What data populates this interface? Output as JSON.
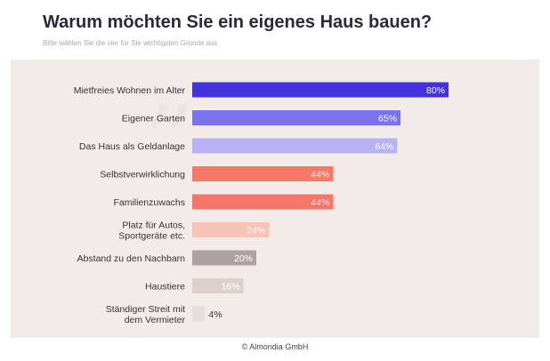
{
  "header": {
    "title": "Warum möchten Sie ein eigenes Haus bauen?",
    "subtitle": "Bitte wählen Sie die vier für Sie wichtigsten Gründe aus"
  },
  "decoration": {
    "quote_mark": "„"
  },
  "footer": {
    "copyright": "© Almondia GmbH"
  },
  "chart_data": {
    "type": "bar",
    "orientation": "horizontal",
    "categories": [
      "Mietfreies Wohnen im Alter",
      "Eigener Garten",
      "Das Haus als Geldanlage",
      "Selbstverwirklichung",
      "Familienzuwachs",
      "Platz für Autos,\nSportgeräte etc.",
      "Abstand zu den Nachbarn",
      "Haustiere",
      "Ständiger Streit mit\ndem Vermieter"
    ],
    "values": [
      80,
      65,
      64,
      44,
      44,
      24,
      20,
      16,
      4
    ],
    "value_labels": [
      "80%",
      "65%",
      "64%",
      "44%",
      "44%",
      "24%",
      "20%",
      "16%",
      "4%"
    ],
    "colors": [
      "#4433dd",
      "#7b72ee",
      "#b7b2f4",
      "#f57868",
      "#f7766a",
      "#f8c2b6",
      "#aea2a0",
      "#ddd0cd",
      "#e5dedb"
    ],
    "label_colors": [
      "#ffffff",
      "#ffffff",
      "#ffffff",
      "#ffffff",
      "#ffffff",
      "#ffffff",
      "#ffffff",
      "#ffffff",
      "#333333"
    ],
    "xlim": [
      0,
      100
    ],
    "grid": false,
    "legend": "none"
  }
}
